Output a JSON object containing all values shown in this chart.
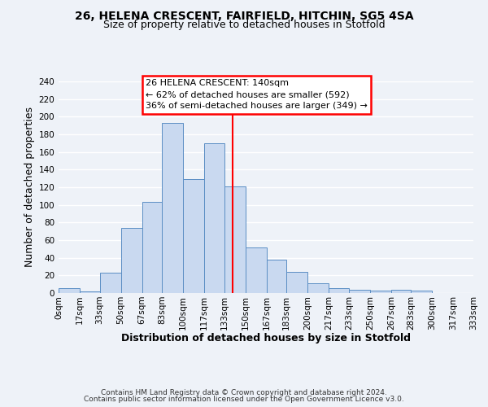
{
  "title": "26, HELENA CRESCENT, FAIRFIELD, HITCHIN, SG5 4SA",
  "subtitle": "Size of property relative to detached houses in Stotfold",
  "xlabel": "Distribution of detached houses by size in Stotfold",
  "ylabel": "Number of detached properties",
  "bar_edges": [
    0,
    17,
    33,
    50,
    67,
    83,
    100,
    117,
    133,
    150,
    167,
    183,
    200,
    217,
    233,
    250,
    267,
    283,
    300,
    317,
    333
  ],
  "bar_heights": [
    6,
    2,
    23,
    74,
    103,
    193,
    129,
    170,
    121,
    52,
    38,
    24,
    11,
    6,
    4,
    3,
    4,
    3,
    0,
    0
  ],
  "bar_color": "#c9d9f0",
  "bar_edgecolor": "#5b8ec4",
  "property_line_x": 140,
  "property_line_color": "red",
  "ylim": [
    0,
    240
  ],
  "yticks": [
    0,
    20,
    40,
    60,
    80,
    100,
    120,
    140,
    160,
    180,
    200,
    220,
    240
  ],
  "tick_labels": [
    "0sqm",
    "17sqm",
    "33sqm",
    "50sqm",
    "67sqm",
    "83sqm",
    "100sqm",
    "117sqm",
    "133sqm",
    "150sqm",
    "167sqm",
    "183sqm",
    "200sqm",
    "217sqm",
    "233sqm",
    "250sqm",
    "267sqm",
    "283sqm",
    "300sqm",
    "317sqm",
    "333sqm"
  ],
  "annotation_box_text": "26 HELENA CRESCENT: 140sqm\n← 62% of detached houses are smaller (592)\n36% of semi-detached houses are larger (349) →",
  "footer1": "Contains HM Land Registry data © Crown copyright and database right 2024.",
  "footer2": "Contains public sector information licensed under the Open Government Licence v3.0.",
  "background_color": "#eef2f8",
  "grid_color": "#ffffff",
  "title_fontsize": 10,
  "subtitle_fontsize": 9,
  "axis_label_fontsize": 9,
  "tick_fontsize": 7.5,
  "footer_fontsize": 6.5,
  "annotation_fontsize": 8
}
